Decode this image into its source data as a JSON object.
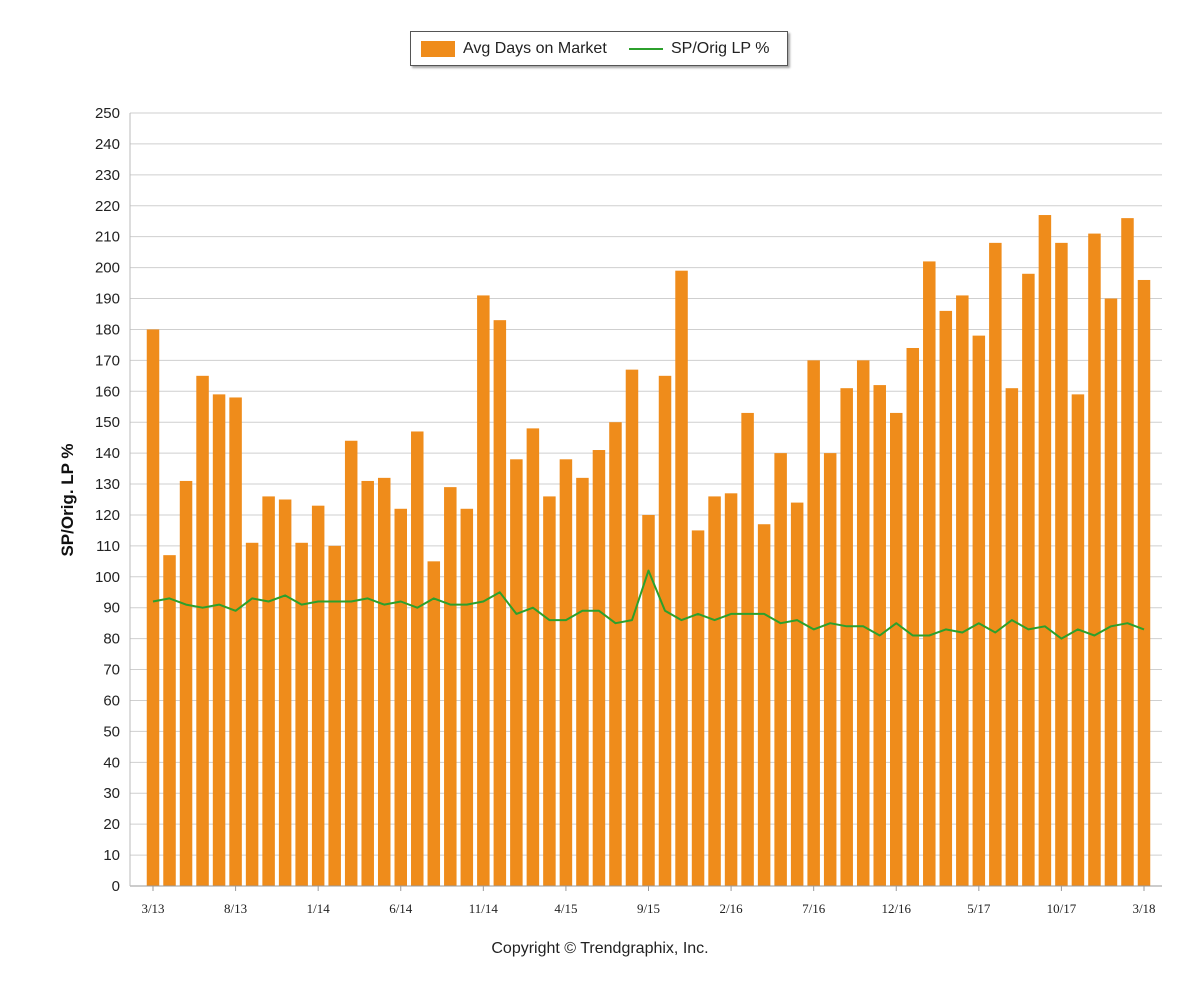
{
  "chart_data": {
    "type": "bar",
    "title": "",
    "ylabel": "SP/Orig. LP %",
    "xlabel": "",
    "ylim": [
      0,
      250
    ],
    "yticks": [
      0,
      10,
      20,
      30,
      40,
      50,
      60,
      70,
      80,
      90,
      100,
      110,
      120,
      130,
      140,
      150,
      160,
      170,
      180,
      190,
      200,
      210,
      220,
      230,
      240,
      250
    ],
    "grid": true,
    "legend_position": "top-center",
    "categories": [
      "3/13",
      "4/13",
      "5/13",
      "6/13",
      "7/13",
      "8/13",
      "9/13",
      "10/13",
      "11/13",
      "12/13",
      "1/14",
      "2/14",
      "3/14",
      "4/14",
      "5/14",
      "6/14",
      "7/14",
      "8/14",
      "9/14",
      "10/14",
      "11/14",
      "12/14",
      "1/15",
      "2/15",
      "3/15",
      "4/15",
      "5/15",
      "6/15",
      "7/15",
      "8/15",
      "9/15",
      "10/15",
      "11/15",
      "12/15",
      "1/16",
      "2/16",
      "3/16",
      "4/16",
      "5/16",
      "6/16",
      "7/16",
      "8/16",
      "9/16",
      "10/16",
      "11/16",
      "12/16",
      "1/17",
      "2/17",
      "3/17",
      "4/17",
      "5/17",
      "6/17",
      "7/17",
      "8/17",
      "9/17",
      "10/17",
      "11/17",
      "12/17",
      "1/18",
      "2/18",
      "3/18"
    ],
    "xtick_labels": [
      "3/13",
      "8/13",
      "1/14",
      "6/14",
      "11/14",
      "4/15",
      "9/15",
      "2/16",
      "7/16",
      "12/16",
      "5/17",
      "10/17",
      "3/18"
    ],
    "series": [
      {
        "name": "Avg Days on Market",
        "type": "bar",
        "color": "#ef8c1b",
        "values": [
          180,
          107,
          131,
          165,
          159,
          158,
          111,
          126,
          125,
          111,
          123,
          110,
          144,
          131,
          132,
          122,
          147,
          105,
          129,
          122,
          191,
          183,
          138,
          148,
          126,
          138,
          132,
          141,
          150,
          167,
          120,
          165,
          199,
          115,
          126,
          127,
          153,
          117,
          140,
          124,
          170,
          140,
          161,
          170,
          162,
          153,
          174,
          202,
          186,
          191,
          178,
          208,
          161,
          198,
          217,
          208,
          159,
          211,
          190,
          216,
          196
        ]
      },
      {
        "name": "SP/Orig LP %",
        "type": "line",
        "color": "#2ca02c",
        "values": [
          92,
          93,
          91,
          90,
          91,
          89,
          93,
          92,
          94,
          91,
          92,
          92,
          92,
          93,
          91,
          92,
          90,
          93,
          91,
          91,
          92,
          95,
          88,
          90,
          86,
          86,
          89,
          89,
          85,
          86,
          102,
          89,
          86,
          88,
          86,
          88,
          88,
          88,
          85,
          86,
          83,
          85,
          84,
          84,
          81,
          85,
          81,
          81,
          83,
          82,
          85,
          82,
          86,
          83,
          84,
          80,
          83,
          81,
          84,
          85,
          83
        ]
      }
    ]
  },
  "legend": {
    "bar_label": "Avg Days on Market",
    "line_label": "SP/Orig LP %"
  },
  "copyright": "Copyright © Trendgraphix, Inc."
}
